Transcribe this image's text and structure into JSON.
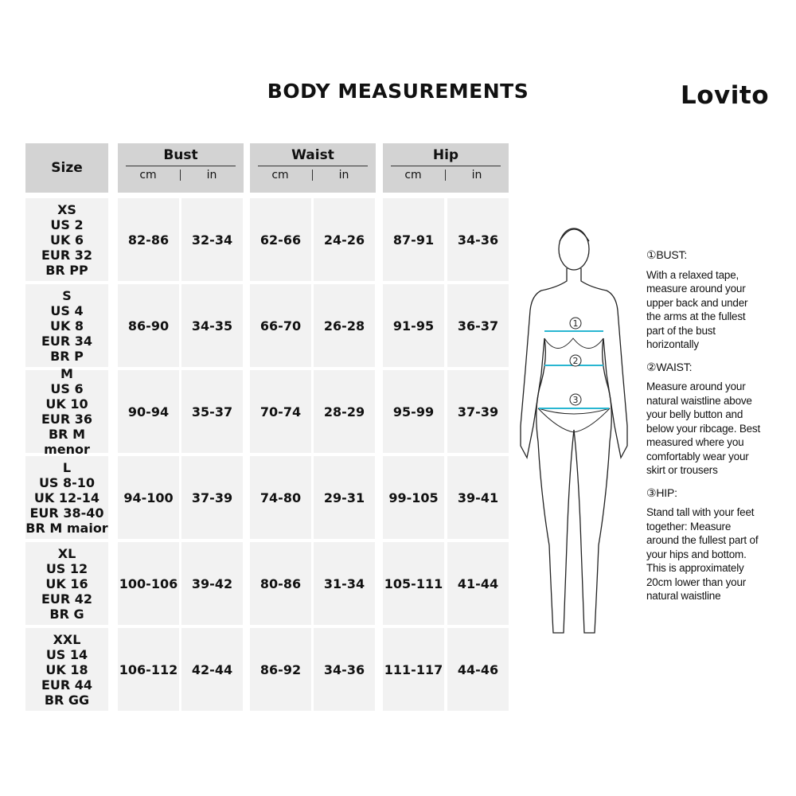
{
  "title": "BODY MEASUREMENTS",
  "brand": "Lovito",
  "table": {
    "size_header": "Size",
    "groups": [
      {
        "label": "Bust",
        "unit_cm": "cm",
        "unit_in": "in"
      },
      {
        "label": "Waist",
        "unit_cm": "cm",
        "unit_in": "in"
      },
      {
        "label": "Hip",
        "unit_cm": "cm",
        "unit_in": "in"
      }
    ],
    "rows": [
      {
        "size": [
          "XS",
          "US 2",
          "UK 6",
          "EUR 32",
          "BR PP"
        ],
        "values": [
          "82-86",
          "32-34",
          "62-66",
          "24-26",
          "87-91",
          "34-36"
        ]
      },
      {
        "size": [
          "S",
          "US 4",
          "UK 8",
          "EUR 34",
          "BR P"
        ],
        "values": [
          "86-90",
          "34-35",
          "66-70",
          "26-28",
          "91-95",
          "36-37"
        ]
      },
      {
        "size": [
          "M",
          "US 6",
          "UK 10",
          "EUR 36",
          "BR M menor"
        ],
        "values": [
          "90-94",
          "35-37",
          "70-74",
          "28-29",
          "95-99",
          "37-39"
        ]
      },
      {
        "size": [
          "L",
          "US 8-10",
          "UK 12-14",
          "EUR 38-40",
          "BR M maior"
        ],
        "values": [
          "94-100",
          "37-39",
          "74-80",
          "29-31",
          "99-105",
          "39-41"
        ]
      },
      {
        "size": [
          "XL",
          "US 12",
          "UK 16",
          "EUR 42",
          "BR G"
        ],
        "values": [
          "100-106",
          "39-42",
          "80-86",
          "31-34",
          "105-111",
          "41-44"
        ]
      },
      {
        "size": [
          "XXL",
          "US 14",
          "UK 18",
          "EUR 44",
          "BR GG"
        ],
        "values": [
          "106-112",
          "42-44",
          "86-92",
          "34-36",
          "111-117",
          "44-46"
        ]
      }
    ]
  },
  "figure": {
    "markers": [
      "1",
      "2",
      "3"
    ],
    "tape_color": "#29b6d1"
  },
  "instructions": [
    {
      "heading": "①BUST:",
      "lines": [
        "With a relaxed tape,",
        "measure around your",
        "upper back and under",
        "the arms at the fullest",
        "part of the bust",
        "horizontally"
      ]
    },
    {
      "heading": "②WAIST:",
      "lines": [
        "Measure around your",
        "natural waistline above",
        "your belly button and",
        "below your ribcage. Best",
        "measured where you",
        "comfortably wear your",
        "skirt or trousers"
      ]
    },
    {
      "heading": "③HIP:",
      "lines": [
        "Stand tall with your feet",
        "together: Measure",
        "around the fullest part of",
        "your hips and bottom.",
        "This is approximately",
        "20cm lower than your",
        "natural waistline"
      ]
    }
  ]
}
